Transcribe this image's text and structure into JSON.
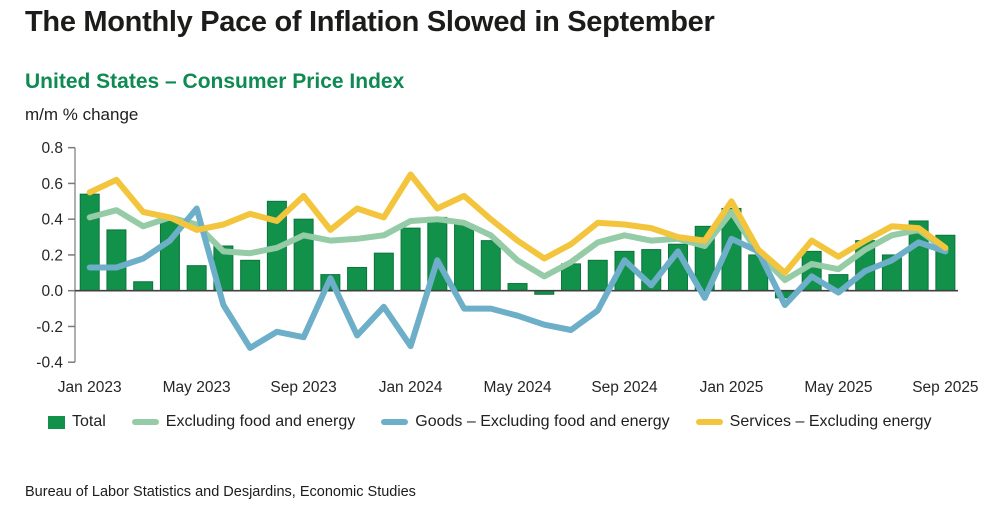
{
  "header": {
    "title": "The Monthly Pace of Inflation Slowed in September",
    "subtitle": "United States – Consumer Price Index",
    "axis_note": "m/m % change"
  },
  "legend": [
    {
      "label": "Total",
      "swatch": "square",
      "color": "#119149"
    },
    {
      "label": "Excluding food and energy",
      "swatch": "line",
      "color": "#95cba6"
    },
    {
      "label": "Goods – Excluding food and energy",
      "swatch": "line",
      "color": "#6dafc8"
    },
    {
      "label": "Services – Excluding energy",
      "swatch": "line",
      "color": "#f3c53d"
    }
  ],
  "footer": {
    "source": "Bureau of Labor Statistics and Desjardins, Economic Studies"
  },
  "chart_data": {
    "type": "combo-bar-line",
    "title": "United States – Consumer Price Index",
    "ylabel": "m/m % change",
    "ylim": [
      -0.4,
      0.8
    ],
    "y_ticks": [
      0.8,
      0.6,
      0.4,
      0.2,
      0.0,
      -0.2,
      -0.4
    ],
    "grid": "none",
    "legend_position": "bottom",
    "x_tick_labels": [
      "Jan 2023",
      "May 2023",
      "Sep 2023",
      "Jan 2024",
      "May 2024",
      "Sep 2024",
      "Jan 2025",
      "May 2025",
      "Sep 2025"
    ],
    "x_tick_month_indices": [
      0,
      4,
      8,
      12,
      16,
      20,
      24,
      28,
      32
    ],
    "months": [
      "Jan 2023",
      "Feb 2023",
      "Mar 2023",
      "Apr 2023",
      "May 2023",
      "Jun 2023",
      "Jul 2023",
      "Aug 2023",
      "Sep 2023",
      "Oct 2023",
      "Nov 2023",
      "Dec 2023",
      "Jan 2024",
      "Feb 2024",
      "Mar 2024",
      "Apr 2024",
      "May 2024",
      "Jun 2024",
      "Jul 2024",
      "Aug 2024",
      "Sep 2024",
      "Oct 2024",
      "Nov 2024",
      "Dec 2024",
      "Jan 2025",
      "Feb 2025",
      "Mar 2025",
      "Apr 2025",
      "May 2025",
      "Jun 2025",
      "Jul 2025",
      "Aug 2025",
      "Sep 2025"
    ],
    "series": [
      {
        "name": "Total",
        "type": "bar",
        "color": "#119149",
        "values": [
          0.54,
          0.34,
          0.05,
          0.4,
          0.14,
          0.25,
          0.17,
          0.5,
          0.4,
          0.09,
          0.13,
          0.21,
          0.35,
          0.41,
          0.37,
          0.28,
          0.04,
          -0.02,
          0.15,
          0.17,
          0.22,
          0.23,
          0.26,
          0.36,
          0.46,
          0.2,
          -0.04,
          0.22,
          0.09,
          0.28,
          0.2,
          0.39,
          0.31
        ]
      },
      {
        "name": "Excluding food and energy",
        "type": "line",
        "color": "#95cba6",
        "values": [
          0.41,
          0.45,
          0.36,
          0.41,
          0.37,
          0.22,
          0.21,
          0.24,
          0.31,
          0.28,
          0.29,
          0.31,
          0.39,
          0.4,
          0.38,
          0.31,
          0.17,
          0.08,
          0.16,
          0.27,
          0.31,
          0.28,
          0.29,
          0.25,
          0.44,
          0.21,
          0.06,
          0.15,
          0.12,
          0.23,
          0.31,
          0.34,
          0.23
        ]
      },
      {
        "name": "Goods – Excluding food and energy",
        "type": "line",
        "color": "#6dafc8",
        "values": [
          0.13,
          0.13,
          0.18,
          0.28,
          0.46,
          -0.08,
          -0.32,
          -0.23,
          -0.26,
          0.07,
          -0.25,
          -0.09,
          -0.31,
          0.17,
          -0.1,
          -0.1,
          -0.14,
          -0.19,
          -0.22,
          -0.11,
          0.17,
          0.03,
          0.22,
          -0.04,
          0.29,
          0.22,
          -0.08,
          0.08,
          -0.01,
          0.11,
          0.17,
          0.27,
          0.22
        ]
      },
      {
        "name": "Services – Excluding energy",
        "type": "line",
        "color": "#f3c53d",
        "values": [
          0.55,
          0.62,
          0.44,
          0.41,
          0.34,
          0.37,
          0.43,
          0.39,
          0.53,
          0.34,
          0.46,
          0.41,
          0.65,
          0.46,
          0.53,
          0.4,
          0.28,
          0.18,
          0.26,
          0.38,
          0.37,
          0.35,
          0.3,
          0.28,
          0.5,
          0.23,
          0.1,
          0.28,
          0.19,
          0.28,
          0.36,
          0.35,
          0.24
        ]
      }
    ]
  }
}
